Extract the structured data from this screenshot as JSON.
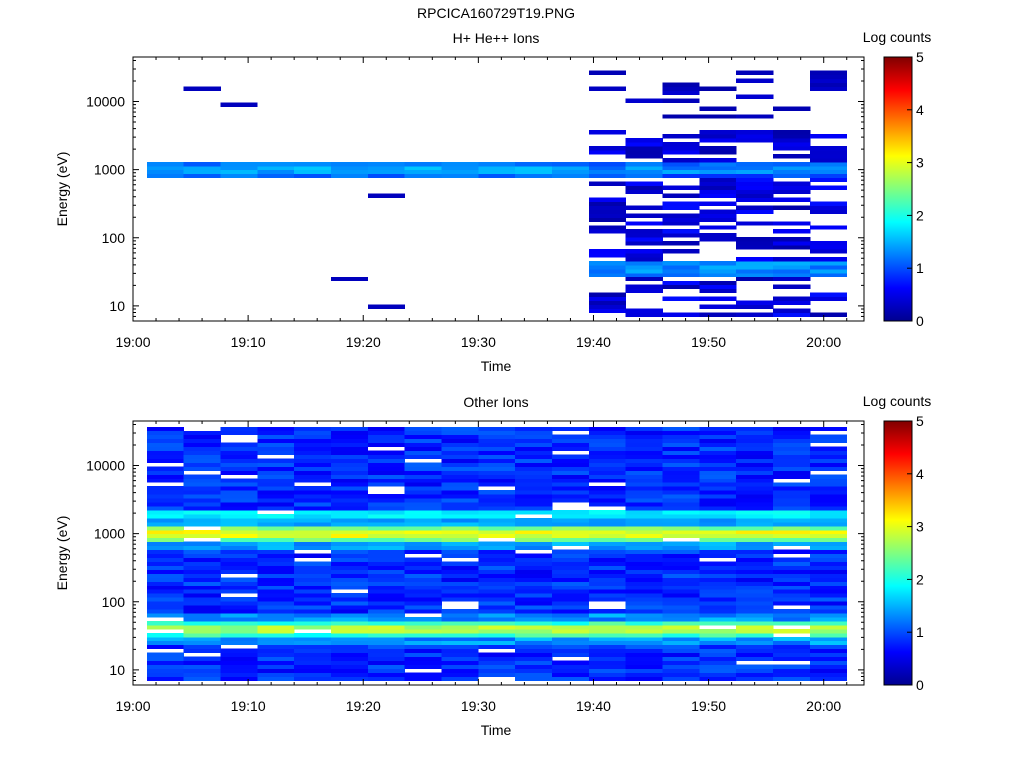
{
  "figure": {
    "title": "RPCICA160729T19.PNG"
  },
  "chart_data": [
    {
      "type": "heatmap",
      "title": "H+ He++ Ions",
      "xlabel": "Time",
      "ylabel": "Energy (eV)",
      "x_ticks": [
        "19:00",
        "19:10",
        "19:20",
        "19:30",
        "19:40",
        "19:50",
        "20:00"
      ],
      "y_ticks": [
        "10",
        "100",
        "1000",
        "10000"
      ],
      "yscale": "log",
      "ylim": [
        6,
        45000
      ],
      "colorbar": {
        "label": "Log counts",
        "ticks": [
          "0",
          "1",
          "2",
          "3",
          "4",
          "5"
        ],
        "range": [
          0,
          5
        ]
      },
      "time_bins_start": "19:01",
      "time_bin_minutes": 3.2,
      "n_time_bins": 19,
      "notes": "Before ~19:40 a narrow band near 1000 eV (log counts ~1.5) with sparse scattered counts; after 19:40 dense broad spectrum from ~7 eV to ~30000 eV with a band near 35 eV.",
      "bands": [
        {
          "energy_ev": 1000,
          "log_counts_before_1940": 1.6,
          "log_counts_after_1940": 1.4
        },
        {
          "energy_ev": 35,
          "log_counts_before_1940": 0,
          "log_counts_after_1940": 1.3
        }
      ]
    },
    {
      "type": "heatmap",
      "title": "Other Ions",
      "xlabel": "Time",
      "ylabel": "Energy (eV)",
      "x_ticks": [
        "19:00",
        "19:10",
        "19:20",
        "19:30",
        "19:40",
        "19:50",
        "20:00"
      ],
      "y_ticks": [
        "10",
        "100",
        "1000",
        "10000"
      ],
      "yscale": "log",
      "ylim": [
        6,
        45000
      ],
      "colorbar": {
        "label": "Log counts",
        "ticks": [
          "0",
          "1",
          "2",
          "3",
          "4",
          "5"
        ],
        "range": [
          0,
          5
        ]
      },
      "time_bins_start": "19:01",
      "time_bin_minutes": 3.2,
      "n_time_bins": 19,
      "notes": "Broad background of ~0.5-1 log counts across all energies with strong bands near 1000 eV and 40 eV and a weaker band near 2000 eV.",
      "bands": [
        {
          "energy_ev": 1000,
          "log_counts": 3.3
        },
        {
          "energy_ev": 40,
          "log_counts": 3.0
        },
        {
          "energy_ev": 2000,
          "log_counts": 1.8
        }
      ]
    }
  ]
}
